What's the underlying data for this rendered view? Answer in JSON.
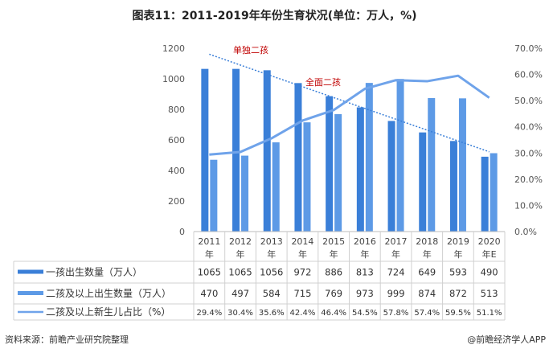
{
  "title": "图表11：2011-2019年年份生育状况(单位：万人，%)",
  "source": "资料来源：前瞻产业研究院整理",
  "brand": "@前瞻经济学人APP",
  "chart_data": {
    "type": "bar+line",
    "title": "图表11：2011-2019年年份生育状况(单位：万人，%)",
    "categories": [
      "2011年",
      "2012年",
      "2013年",
      "2014年",
      "2015年",
      "2016年",
      "2017年",
      "2018年",
      "2019年",
      "2020年E"
    ],
    "y_left": {
      "ylim": [
        0,
        1200
      ],
      "ticks": [
        "0",
        "200",
        "400",
        "600",
        "800",
        "1000",
        "1200"
      ]
    },
    "y_right": {
      "ylim": [
        0,
        70
      ],
      "ticks": [
        "0.0%",
        "10.0%",
        "20.0%",
        "30.0%",
        "40.0%",
        "50.0%",
        "60.0%",
        "70.0%"
      ]
    },
    "series": [
      {
        "name": "一孩出生数量（万人）",
        "type": "bar",
        "axis": "left",
        "color": "#3a7fd8",
        "values": [
          1065,
          1065,
          1056,
          972,
          886,
          813,
          724,
          649,
          593,
          490
        ],
        "labels": [
          "1065",
          "1065",
          "1056",
          "972",
          "886",
          "813",
          "724",
          "649",
          "593",
          "490"
        ]
      },
      {
        "name": "二孩及以上出生数量（万人）",
        "type": "bar",
        "axis": "left",
        "color": "#5d9ae6",
        "values": [
          470,
          497,
          584,
          715,
          769,
          973,
          999,
          874,
          872,
          513
        ],
        "labels": [
          "470",
          "497",
          "584",
          "715",
          "769",
          "973",
          "999",
          "874",
          "872",
          "513"
        ]
      },
      {
        "name": "二孩及以上新生儿占比（%）",
        "type": "line",
        "axis": "right",
        "color": "#6fa3ea",
        "values": [
          29.4,
          30.4,
          35.6,
          42.4,
          46.4,
          54.5,
          57.8,
          57.4,
          59.5,
          51.1
        ],
        "labels": [
          "29.4%",
          "30.4%",
          "35.6%",
          "42.4%",
          "46.4%",
          "54.5%",
          "57.8%",
          "57.4%",
          "59.5%",
          "51.1%"
        ]
      }
    ],
    "trendline": {
      "series": "一孩出生数量（万人）",
      "style": "dotted",
      "color": "#3a7fd8"
    },
    "annotations": [
      {
        "text": "单独二孩",
        "color": "#c00000"
      },
      {
        "text": "全面二孩",
        "color": "#c00000"
      }
    ],
    "grid": false,
    "legend": "data-table"
  }
}
